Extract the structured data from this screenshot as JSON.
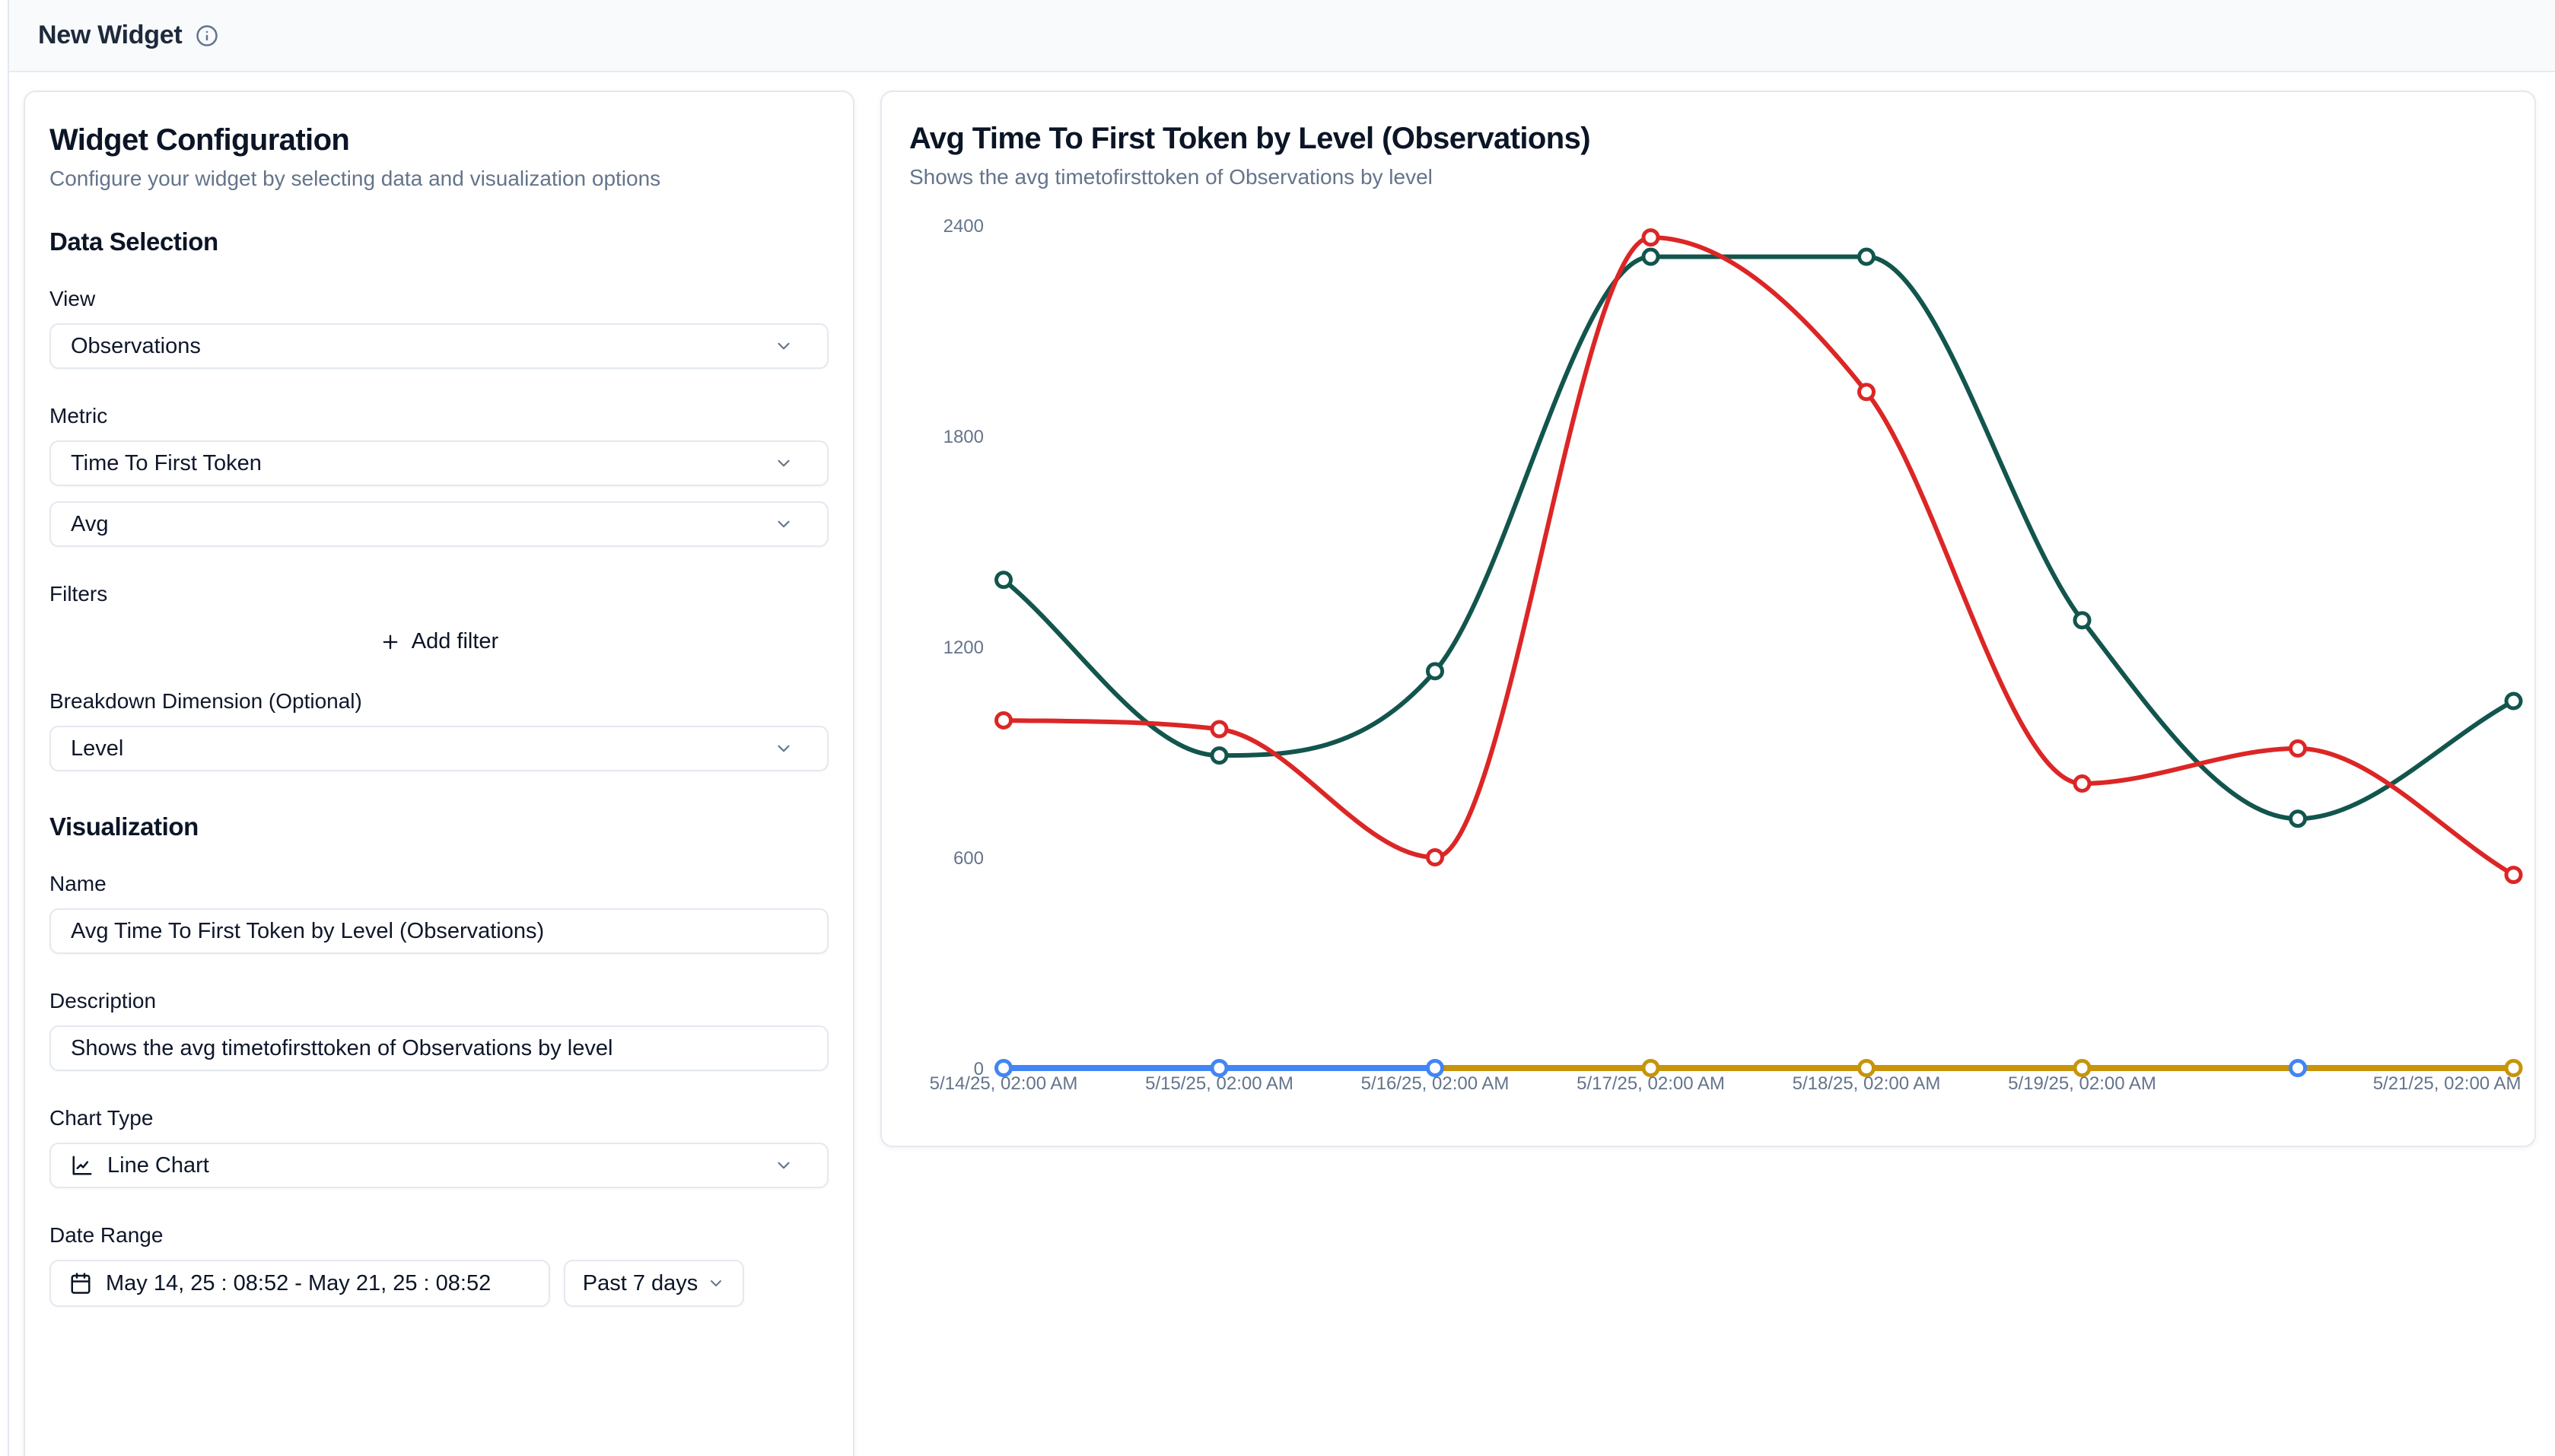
{
  "header": {
    "title": "New Widget",
    "info_icon": "info-icon"
  },
  "config_panel": {
    "title": "Widget Configuration",
    "subtitle": "Configure your widget by selecting data and visualization options",
    "data_selection": {
      "heading": "Data Selection",
      "view_label": "View",
      "view_value": "Observations",
      "metric_label": "Metric",
      "metric_value": "Time To First Token",
      "aggregation_value": "Avg",
      "filters_label": "Filters",
      "add_filter_label": "Add filter",
      "breakdown_label": "Breakdown Dimension (Optional)",
      "breakdown_value": "Level"
    },
    "visualization": {
      "heading": "Visualization",
      "name_label": "Name",
      "name_value": "Avg Time To First Token by Level (Observations)",
      "description_label": "Description",
      "description_value": "Shows the avg timetofirsttoken of Observations by level",
      "chart_type_label": "Chart Type",
      "chart_type_value": "Line Chart",
      "chart_type_icon": "line-chart-icon",
      "date_range_label": "Date Range",
      "date_range_value": "May 14, 25 : 08:52 - May 21, 25 : 08:52",
      "date_preset_value": "Past 7 days"
    }
  },
  "chart_card": {
    "title": "Avg Time To First Token by Level (Observations)",
    "subtitle": "Shows the avg timetofirsttoken of Observations by level"
  },
  "chart_data": {
    "type": "line",
    "title": "Avg Time To First Token by Level (Observations)",
    "xlabel": "",
    "ylabel": "",
    "x_labels": [
      "5/14/25, 02:00 AM",
      "5/15/25, 02:00 AM",
      "5/16/25, 02:00 AM",
      "5/17/25, 02:00 AM",
      "5/18/25, 02:00 AM",
      "5/19/25, 02:00 AM",
      "",
      "5/21/25, 02:00 AM"
    ],
    "y_ticks": [
      0,
      600,
      1200,
      1800,
      2400
    ],
    "ylim": [
      0,
      2400
    ],
    "grid": false,
    "legend": "none",
    "series": [
      {
        "name": "level-line-blue",
        "color": "#4285f4",
        "curve": "linear",
        "width": 8,
        "x_indices": [
          0,
          1,
          2,
          6
        ],
        "values": [
          0,
          0,
          0,
          0
        ],
        "marker_indices": [
          0,
          1,
          2,
          6
        ]
      },
      {
        "name": "level-line-amber",
        "color": "#c7940a",
        "curve": "linear",
        "width": 8,
        "x_indices": [
          2,
          3,
          4,
          5,
          6,
          7
        ],
        "values": [
          0,
          0,
          0,
          0,
          0,
          0
        ],
        "marker_indices": [
          3,
          4,
          5,
          7
        ]
      },
      {
        "name": "level-line-teal",
        "color": "#12554d",
        "curve": "monotone",
        "width": 6,
        "x_indices": [
          0,
          1,
          2,
          3,
          4,
          5,
          6,
          7
        ],
        "values": [
          1390,
          890,
          1130,
          2310,
          2310,
          1275,
          710,
          1045
        ],
        "marker_indices": [
          0,
          1,
          2,
          3,
          4,
          5,
          6,
          7
        ]
      },
      {
        "name": "level-line-red",
        "color": "#dc2626",
        "curve": "monotone",
        "width": 6,
        "x_indices": [
          0,
          1,
          2,
          3,
          4,
          5,
          6,
          7
        ],
        "values": [
          990,
          965,
          600,
          2365,
          1925,
          810,
          910,
          550
        ],
        "marker_indices": [
          0,
          1,
          2,
          3,
          4,
          5,
          6,
          7
        ]
      }
    ]
  }
}
